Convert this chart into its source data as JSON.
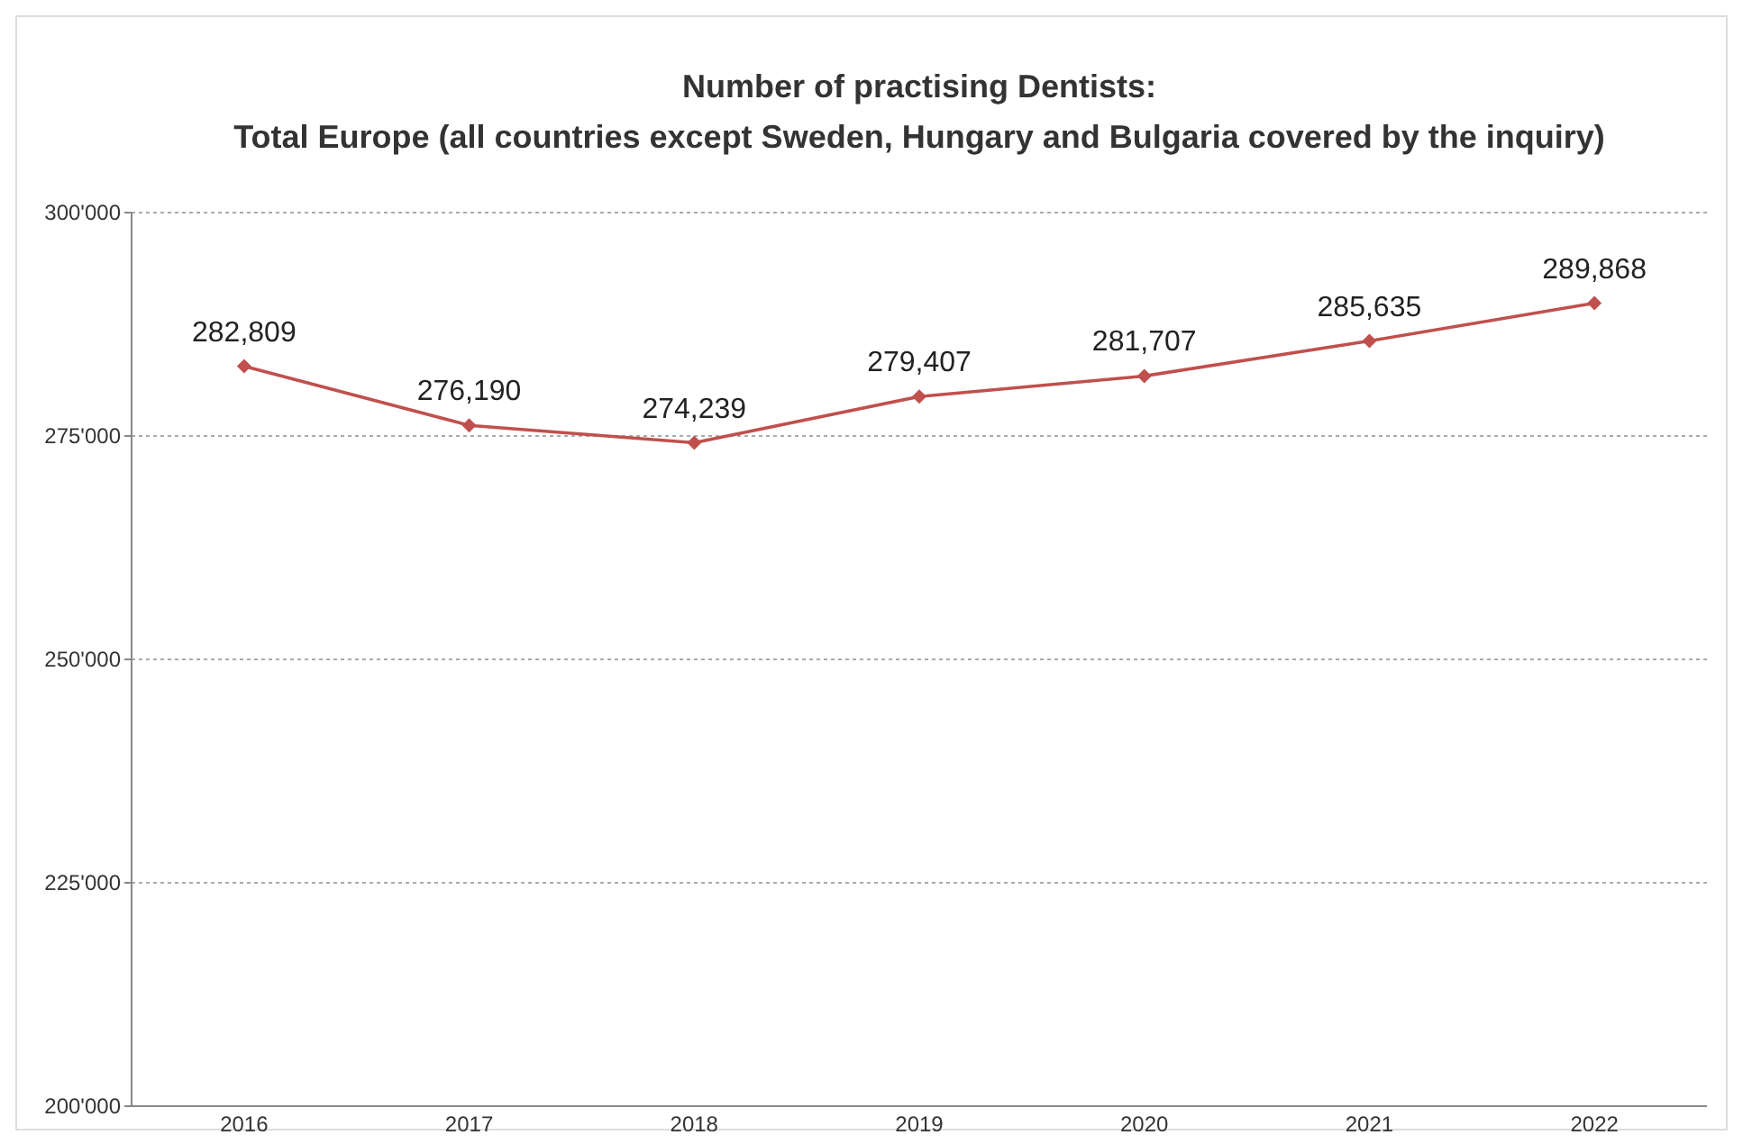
{
  "chart_data": {
    "type": "line",
    "title": "Number of practising Dentists:",
    "subtitle": "Total Europe (all countries except Sweden, Hungary and Bulgaria covered by the inquiry)",
    "categories": [
      "2016",
      "2017",
      "2018",
      "2019",
      "2020",
      "2021",
      "2022"
    ],
    "values": [
      282809,
      276190,
      274239,
      279407,
      281707,
      285635,
      289868
    ],
    "value_labels": [
      "282,809",
      "276,190",
      "274,239",
      "279,407",
      "281,707",
      "285,635",
      "289,868"
    ],
    "color": "#c0504d",
    "marker": "diamond",
    "grid": "y",
    "ylim": [
      200000,
      300000
    ],
    "yticks": [
      {
        "value": 200000,
        "label": "200'000"
      },
      {
        "value": 225000,
        "label": "225'000"
      },
      {
        "value": 250000,
        "label": "250'000"
      },
      {
        "value": 275000,
        "label": "275'000"
      },
      {
        "value": 300000,
        "label": "300'000"
      }
    ]
  }
}
